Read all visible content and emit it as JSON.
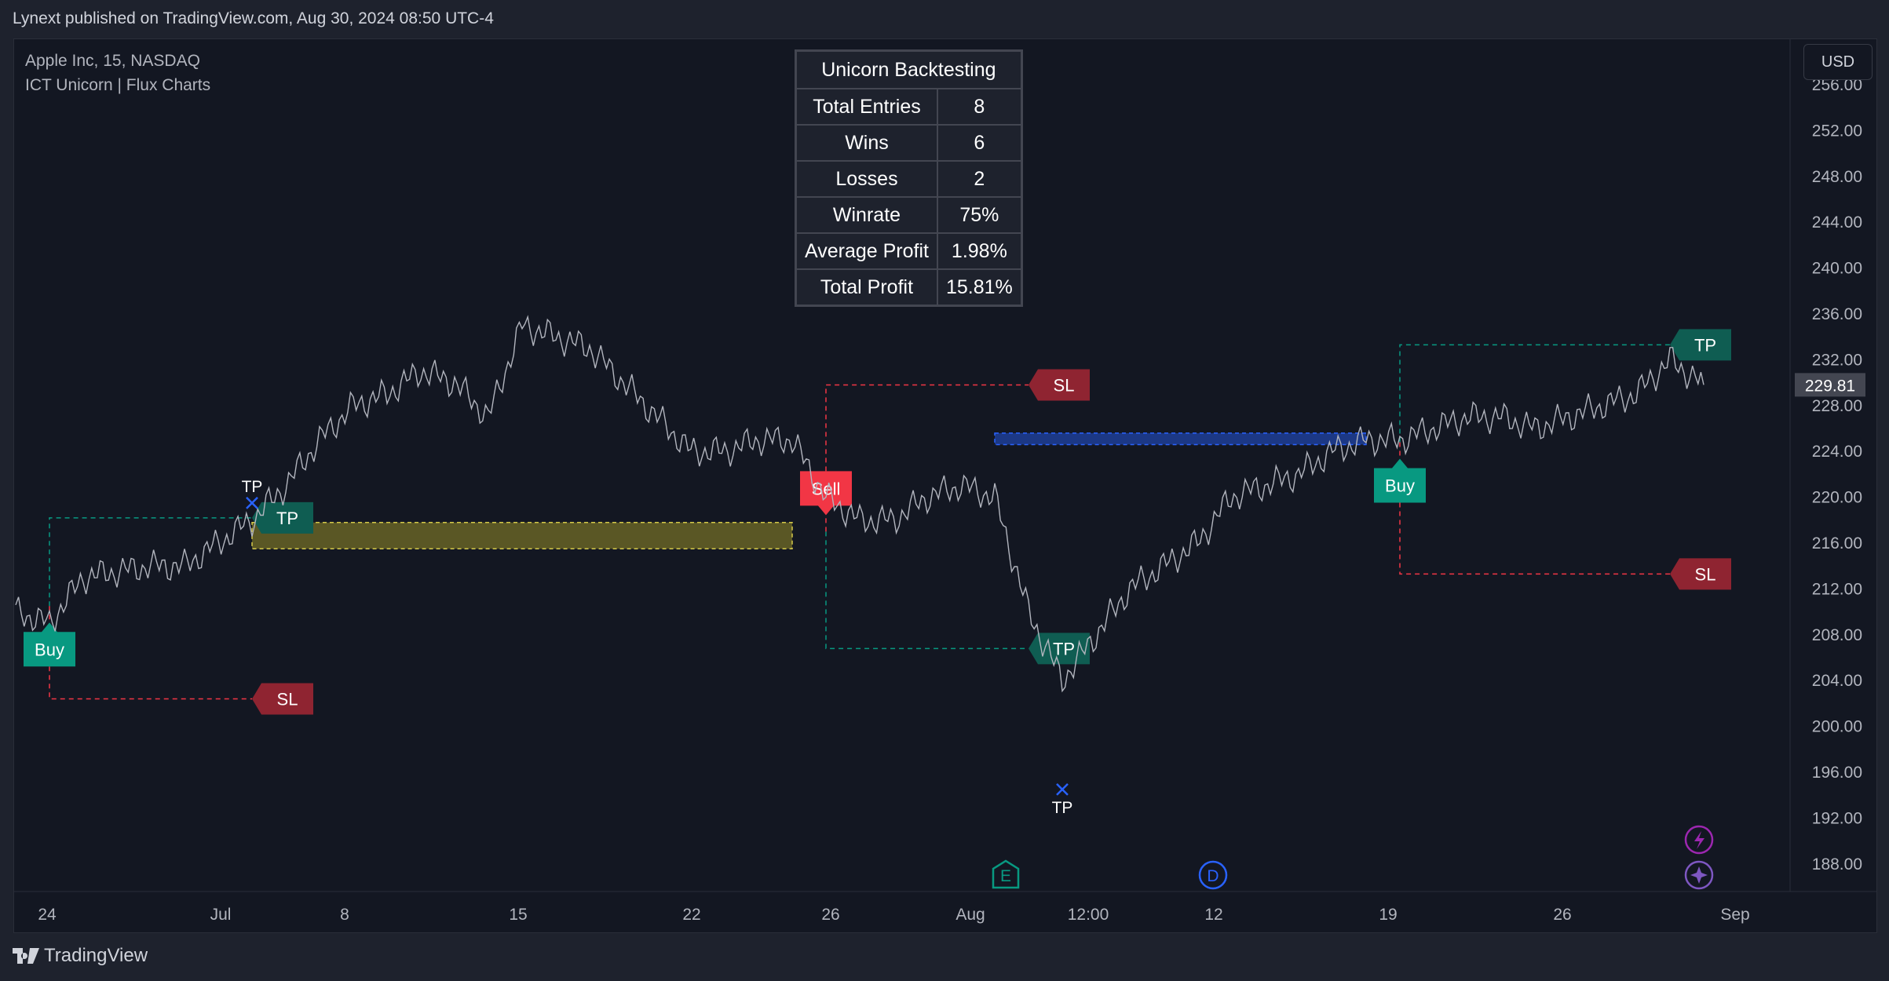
{
  "header": {
    "text": "Lynext published on TradingView.com, Aug 30, 2024 08:50 UTC-4"
  },
  "legend": {
    "symbol": "Apple Inc, 15, NASDAQ",
    "indicator": "ICT Unicorn | Flux Charts"
  },
  "currency": "USD",
  "stats_table": {
    "title": "Unicorn Backtesting",
    "rows": [
      {
        "label": "Total Entries",
        "value": "8"
      },
      {
        "label": "Wins",
        "value": "6"
      },
      {
        "label": "Losses",
        "value": "2"
      },
      {
        "label": "Winrate",
        "value": "75%"
      },
      {
        "label": "Average Profit",
        "value": "1.98%"
      },
      {
        "label": "Total Profit",
        "value": "15.81%"
      }
    ]
  },
  "footer": {
    "brand": "TradingView"
  },
  "colors": {
    "background": "#131722",
    "candles": "#b2b5be",
    "buy": "#089981",
    "sell": "#f23645",
    "tp": "#0f5d52",
    "sl": "#8f2431",
    "last_price_bg": "#434651"
  },
  "chart_data": {
    "type": "line",
    "symbol": "Apple Inc",
    "interval": "15",
    "exchange": "NASDAQ",
    "ylim": [
      186,
      257
    ],
    "y_ticks": [
      "256.00",
      "252.00",
      "248.00",
      "244.00",
      "240.00",
      "236.00",
      "232.00",
      "228.00",
      "224.00",
      "220.00",
      "216.00",
      "212.00",
      "208.00",
      "204.00",
      "200.00",
      "196.00",
      "192.00",
      "188.00"
    ],
    "x_ticks": [
      "24",
      "Jul",
      "8",
      "15",
      "22",
      "26",
      "Aug",
      "12:00",
      "12",
      "19",
      "26",
      "Sep"
    ],
    "last_price": "229.81",
    "x": [
      "Jun 21",
      "Jun 24",
      "Jun 25",
      "Jun 26",
      "Jun 27",
      "Jun 28",
      "Jul 1",
      "Jul 2",
      "Jul 3",
      "Jul 5",
      "Jul 8",
      "Jul 9",
      "Jul 10",
      "Jul 11",
      "Jul 12",
      "Jul 15",
      "Jul 16",
      "Jul 17",
      "Jul 18",
      "Jul 19",
      "Jul 22",
      "Jul 23",
      "Jul 24",
      "Jul 25",
      "Jul 26",
      "Jul 29",
      "Jul 30",
      "Jul 31",
      "Aug 1",
      "Aug 2",
      "Aug 5 00:00",
      "Aug 5 12:00",
      "Aug 6",
      "Aug 7",
      "Aug 8",
      "Aug 9",
      "Aug 12",
      "Aug 13",
      "Aug 14",
      "Aug 15",
      "Aug 16",
      "Aug 19",
      "Aug 20",
      "Aug 21",
      "Aug 22",
      "Aug 23",
      "Aug 26",
      "Aug 27",
      "Aug 28",
      "Aug 29",
      "Aug 30"
    ],
    "series": [
      {
        "values": [
          210,
          209,
          213,
          213.5,
          214,
          214,
          216,
          218,
          221,
          225,
          228,
          229,
          231,
          230,
          227,
          235,
          234,
          233,
          230,
          227,
          224,
          224,
          225,
          225,
          220,
          218,
          218,
          220,
          221,
          220,
          210,
          204,
          208,
          212,
          214,
          216,
          220,
          221,
          222,
          224,
          225,
          225,
          226,
          227,
          227,
          226,
          227,
          228,
          229,
          232,
          229.81
        ]
      }
    ],
    "zones": [
      {
        "type": "yellow",
        "y_range": [
          215.5,
          217.8
        ],
        "x_range": [
          "Jul 2",
          "Jul 25"
        ]
      },
      {
        "type": "blue",
        "y_range": [
          224.6,
          225.6
        ],
        "x_range": [
          "Aug 2",
          "Aug 16"
        ]
      }
    ],
    "trades": [
      {
        "side": "Buy",
        "entry": 210.5,
        "tp": 218.2,
        "sl": 202.4,
        "entry_label": "Buy",
        "tp_label": "TP",
        "sl_label": "SL",
        "hit": "TP"
      },
      {
        "side": "Sell",
        "entry": 217,
        "tp": 206.8,
        "sl": 229.8,
        "entry_label": "Sell",
        "tp_label": "TP",
        "sl_label": "SL",
        "hit": "TP"
      },
      {
        "side": "Buy",
        "entry": 224.8,
        "tp": 233.3,
        "sl": 213.3,
        "entry_label": "Buy",
        "tp_label": "TP",
        "sl_label": "SL",
        "hit": "none"
      }
    ],
    "hit_markers": [
      {
        "label": "TP",
        "price": 219.5
      },
      {
        "label": "TP",
        "price": 194.5
      }
    ],
    "events": [
      {
        "label": "E",
        "color": "#089981"
      },
      {
        "label": "D",
        "color": "#2962ff"
      }
    ]
  }
}
